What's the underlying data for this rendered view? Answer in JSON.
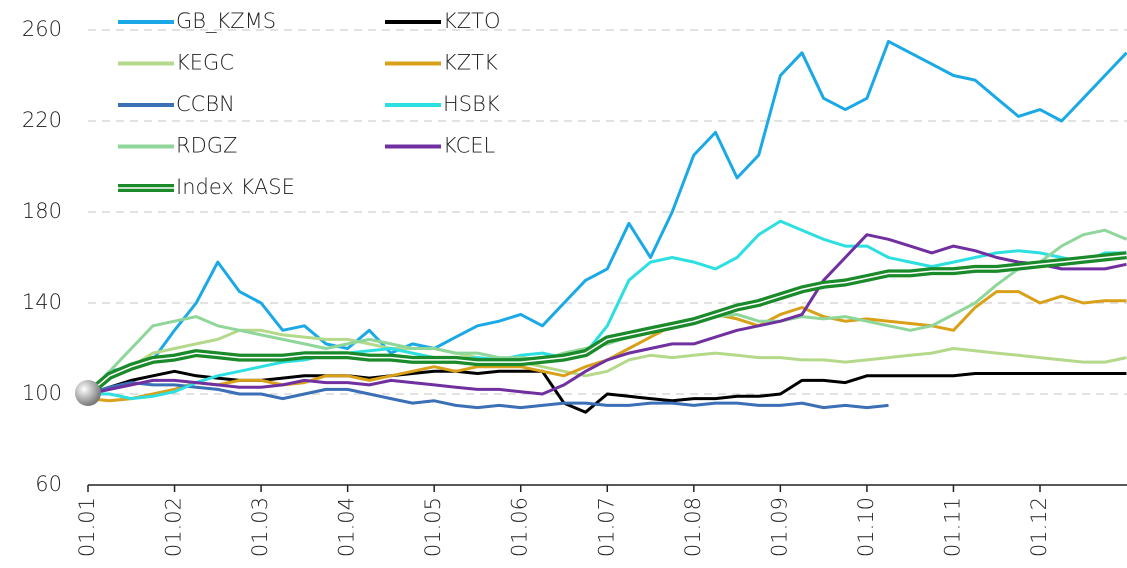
{
  "chart_data": {
    "type": "line",
    "categories": [
      "01.01",
      null,
      null,
      null,
      "01.02",
      null,
      null,
      null,
      "01.03",
      null,
      null,
      null,
      "01.04",
      null,
      null,
      null,
      "01.05",
      null,
      null,
      null,
      "01.06",
      null,
      null,
      null,
      "01.07",
      null,
      null,
      null,
      "01.08",
      null,
      null,
      null,
      "01.09",
      null,
      null,
      null,
      "01.10",
      null,
      null,
      null,
      "01.11",
      null,
      null,
      null,
      "01.12",
      null,
      null,
      null,
      null
    ],
    "ylim": [
      60,
      260
    ],
    "yticks": [
      60,
      100,
      140,
      180,
      220,
      260
    ],
    "grid": true,
    "legend": "upper left",
    "series": [
      {
        "name": "GB_KZMS",
        "color": "#1aa9e6",
        "values": [
          100,
          110,
          112,
          115,
          128,
          140,
          158,
          145,
          140,
          128,
          130,
          122,
          120,
          128,
          118,
          122,
          120,
          125,
          130,
          132,
          135,
          130,
          140,
          150,
          155,
          175,
          160,
          180,
          205,
          215,
          195,
          205,
          240,
          250,
          230,
          225,
          230,
          255,
          250,
          245,
          240,
          238,
          230,
          222,
          225,
          220,
          230,
          240,
          250
        ]
      },
      {
        "name": "KZTO",
        "color": "#000000",
        "values": [
          100,
          103,
          106,
          108,
          110,
          108,
          107,
          106,
          106,
          107,
          108,
          108,
          108,
          107,
          108,
          109,
          110,
          110,
          109,
          110,
          110,
          110,
          96,
          92,
          100,
          99,
          98,
          97,
          98,
          98,
          99,
          99,
          100,
          106,
          106,
          105,
          108,
          108,
          108,
          108,
          108,
          109,
          109,
          109,
          109,
          109,
          109,
          109,
          109
        ]
      },
      {
        "name": "KEGC",
        "color": "#b5d98a",
        "values": [
          100,
          108,
          112,
          118,
          120,
          122,
          124,
          128,
          128,
          126,
          125,
          124,
          124,
          122,
          120,
          120,
          120,
          118,
          116,
          115,
          114,
          112,
          110,
          108,
          110,
          115,
          117,
          116,
          117,
          118,
          117,
          116,
          116,
          115,
          115,
          114,
          115,
          116,
          117,
          118,
          120,
          119,
          118,
          117,
          116,
          115,
          114,
          114,
          116
        ]
      },
      {
        "name": "KZTK",
        "color": "#d9a01a",
        "values": [
          98,
          97,
          98,
          100,
          102,
          105,
          104,
          106,
          106,
          104,
          105,
          108,
          108,
          106,
          108,
          110,
          112,
          110,
          112,
          112,
          112,
          110,
          108,
          112,
          115,
          120,
          125,
          130,
          132,
          135,
          133,
          130,
          135,
          138,
          134,
          132,
          133,
          132,
          131,
          130,
          128,
          138,
          145,
          145,
          140,
          143,
          140,
          141,
          141
        ]
      },
      {
        "name": "CCBN",
        "color": "#3b6fb6",
        "values": [
          100,
          103,
          105,
          104,
          104,
          103,
          102,
          100,
          100,
          98,
          100,
          102,
          102,
          100,
          98,
          96,
          97,
          95,
          94,
          95,
          94,
          95,
          96,
          96,
          95,
          95,
          96,
          96,
          95,
          96,
          96,
          95,
          95,
          96,
          94,
          95,
          94,
          95,
          null,
          null,
          null,
          null,
          null,
          null,
          null,
          null,
          null,
          null,
          null
        ]
      },
      {
        "name": "HSBK",
        "color": "#2ddfe0",
        "values": [
          100,
          100,
          98,
          99,
          101,
          105,
          108,
          110,
          112,
          114,
          115,
          117,
          118,
          119,
          120,
          118,
          116,
          115,
          116,
          115,
          117,
          118,
          116,
          118,
          130,
          150,
          158,
          160,
          158,
          155,
          160,
          170,
          176,
          172,
          168,
          165,
          165,
          160,
          158,
          156,
          158,
          160,
          162,
          163,
          162,
          160,
          158,
          162,
          162
        ]
      },
      {
        "name": "RDGZ",
        "color": "#8fd69a",
        "values": [
          100,
          110,
          120,
          130,
          132,
          134,
          130,
          128,
          126,
          124,
          122,
          120,
          122,
          124,
          122,
          120,
          120,
          118,
          118,
          116,
          116,
          115,
          118,
          120,
          122,
          125,
          128,
          130,
          132,
          134,
          135,
          132,
          132,
          134,
          133,
          134,
          132,
          130,
          128,
          130,
          135,
          140,
          148,
          155,
          158,
          165,
          170,
          172,
          168
        ]
      },
      {
        "name": "KCEL",
        "color": "#7030a0",
        "values": [
          100,
          102,
          104,
          106,
          106,
          105,
          104,
          103,
          103,
          104,
          106,
          105,
          105,
          104,
          106,
          105,
          104,
          103,
          102,
          102,
          101,
          100,
          104,
          110,
          115,
          118,
          120,
          122,
          122,
          125,
          128,
          130,
          132,
          135,
          150,
          160,
          170,
          168,
          165,
          162,
          165,
          163,
          160,
          158,
          157,
          155,
          155,
          155,
          157
        ]
      },
      {
        "name": "Index KASE",
        "color": "#1a8a2a",
        "inner_color": "#ffffff",
        "values": [
          100,
          108,
          112,
          115,
          116,
          118,
          117,
          116,
          116,
          116,
          117,
          117,
          117,
          116,
          116,
          115,
          115,
          115,
          114,
          114,
          114,
          115,
          116,
          118,
          124,
          126,
          128,
          130,
          132,
          135,
          138,
          140,
          143,
          146,
          148,
          149,
          151,
          153,
          153,
          154,
          154,
          155,
          155,
          156,
          157,
          158,
          159,
          160,
          161
        ]
      }
    ]
  }
}
